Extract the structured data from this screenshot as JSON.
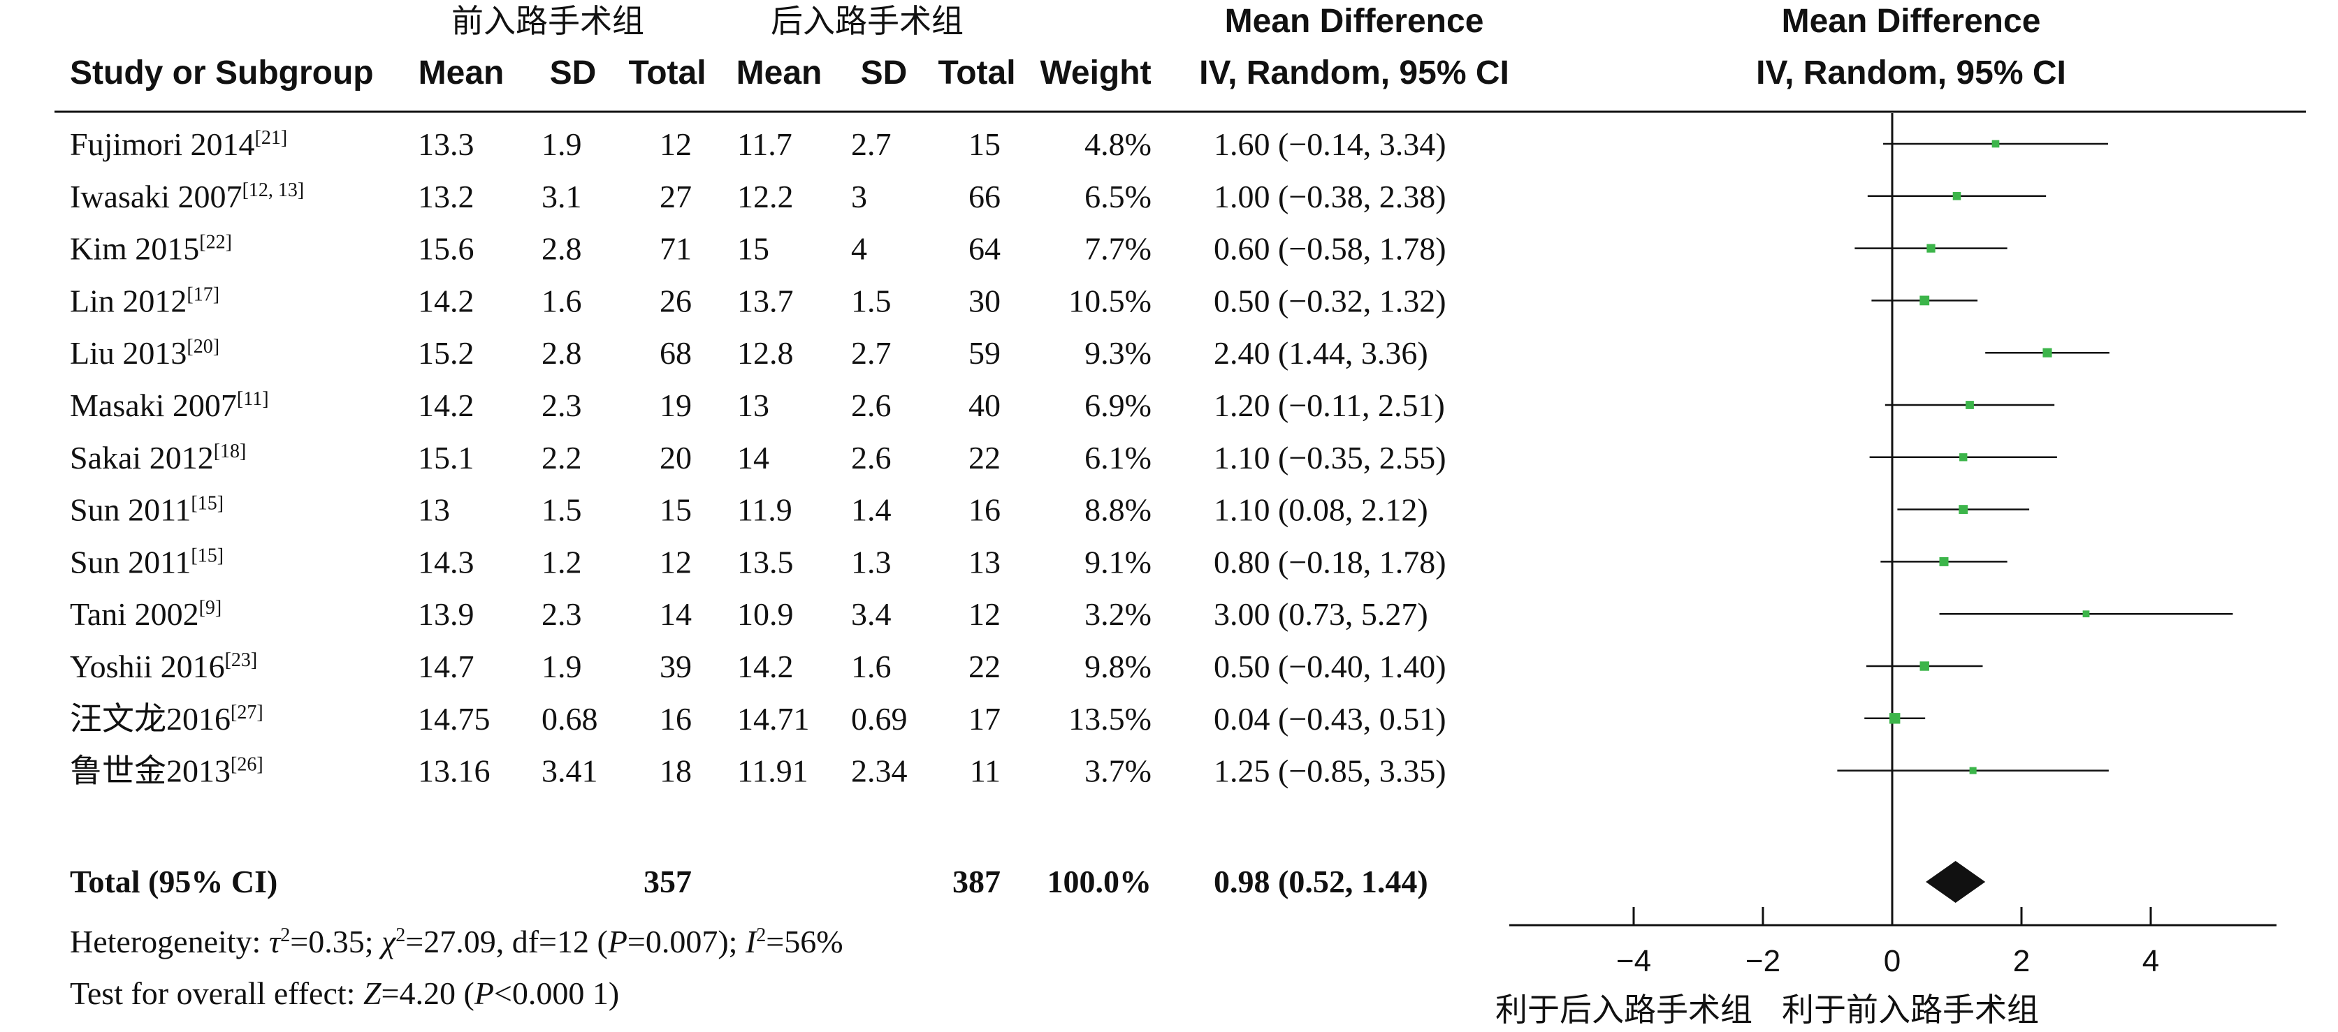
{
  "header": {
    "group_exp": "前入路手术组",
    "group_ctl": "后入路手术组",
    "md_title_line1": "Mean Difference",
    "md_title_line2": "IV, Random, 95% CI",
    "plot_title_line1": "Mean Difference",
    "plot_title_line2": "IV, Random, 95% CI",
    "col_study": "Study or Subgroup",
    "col_mean_exp": "Mean",
    "col_sd_exp": "SD",
    "col_total_exp": "Total",
    "col_mean_ctl": "Mean",
    "col_sd_ctl": "SD",
    "col_total_ctl": "Total",
    "col_weight": "Weight"
  },
  "studies": [
    {
      "name": "Fujimori 2014",
      "ref": "[21]",
      "mean1": "13.3",
      "sd1": "1.9",
      "n1": "12",
      "mean2": "11.7",
      "sd2": "2.7",
      "n2": "15",
      "weight": "4.8%",
      "ci_text": "1.60 (−0.14, 3.34)"
    },
    {
      "name": "Iwasaki 2007",
      "ref": "[12, 13]",
      "mean1": "13.2",
      "sd1": "3.1",
      "n1": "27",
      "mean2": "12.2",
      "sd2": "3",
      "n2": "66",
      "weight": "6.5%",
      "ci_text": "1.00 (−0.38, 2.38)"
    },
    {
      "name": "Kim 2015",
      "ref": "[22]",
      "mean1": "15.6",
      "sd1": "2.8",
      "n1": "71",
      "mean2": "15",
      "sd2": "4",
      "n2": "64",
      "weight": "7.7%",
      "ci_text": "0.60 (−0.58, 1.78)"
    },
    {
      "name": "Lin 2012",
      "ref": "[17]",
      "mean1": "14.2",
      "sd1": "1.6",
      "n1": "26",
      "mean2": "13.7",
      "sd2": "1.5",
      "n2": "30",
      "weight": "10.5%",
      "ci_text": "0.50 (−0.32, 1.32)"
    },
    {
      "name": "Liu 2013",
      "ref": "[20]",
      "mean1": "15.2",
      "sd1": "2.8",
      "n1": "68",
      "mean2": "12.8",
      "sd2": "2.7",
      "n2": "59",
      "weight": "9.3%",
      "ci_text": "2.40 (1.44, 3.36)"
    },
    {
      "name": "Masaki 2007",
      "ref": "[11]",
      "mean1": "14.2",
      "sd1": "2.3",
      "n1": "19",
      "mean2": "13",
      "sd2": "2.6",
      "n2": "40",
      "weight": "6.9%",
      "ci_text": "1.20 (−0.11, 2.51)"
    },
    {
      "name": "Sakai 2012",
      "ref": "[18]",
      "mean1": "15.1",
      "sd1": "2.2",
      "n1": "20",
      "mean2": "14",
      "sd2": "2.6",
      "n2": "22",
      "weight": "6.1%",
      "ci_text": "1.10 (−0.35, 2.55)"
    },
    {
      "name": "Sun 2011",
      "ref": "[15]",
      "mean1": "13",
      "sd1": "1.5",
      "n1": "15",
      "mean2": "11.9",
      "sd2": "1.4",
      "n2": "16",
      "weight": "8.8%",
      "ci_text": "1.10 (0.08, 2.12)"
    },
    {
      "name": "Sun 2011",
      "ref": "[15]",
      "mean1": "14.3",
      "sd1": "1.2",
      "n1": "12",
      "mean2": "13.5",
      "sd2": "1.3",
      "n2": "13",
      "weight": "9.1%",
      "ci_text": "0.80 (−0.18, 1.78)"
    },
    {
      "name": "Tani 2002",
      "ref": "[9]",
      "mean1": "13.9",
      "sd1": "2.3",
      "n1": "14",
      "mean2": "10.9",
      "sd2": "3.4",
      "n2": "12",
      "weight": "3.2%",
      "ci_text": "3.00 (0.73, 5.27)"
    },
    {
      "name": "Yoshii 2016",
      "ref": "[23]",
      "mean1": "14.7",
      "sd1": "1.9",
      "n1": "39",
      "mean2": "14.2",
      "sd2": "1.6",
      "n2": "22",
      "weight": "9.8%",
      "ci_text": "0.50 (−0.40, 1.40)"
    },
    {
      "name": "汪文龙2016",
      "ref": "[27]",
      "mean1": "14.75",
      "sd1": "0.68",
      "n1": "16",
      "mean2": "14.71",
      "sd2": "0.69",
      "n2": "17",
      "weight": "13.5%",
      "ci_text": "0.04 (−0.43, 0.51)"
    },
    {
      "name": "鲁世金2013",
      "ref": "[26]",
      "mean1": "13.16",
      "sd1": "3.41",
      "n1": "18",
      "mean2": "11.91",
      "sd2": "2.34",
      "n2": "11",
      "weight": "3.7%",
      "ci_text": "1.25 (−0.85, 3.35)"
    }
  ],
  "total": {
    "label": "Total (95% CI)",
    "n1": "357",
    "n2": "387",
    "weight": "100.0%",
    "ci_text": "0.98 (0.52, 1.44)"
  },
  "heterogeneity": {
    "prefix": "Heterogeneity: ",
    "tau_sym": "τ",
    "tau_val": "=0.35; ",
    "chi_sym": "χ",
    "chi_val": "=27.09, df=12 (",
    "p_sym": "P",
    "p_val": "=0.007); ",
    "i_sym": "I",
    "i_val": "=56%",
    "sq": "2"
  },
  "overall_effect": {
    "prefix": "Test for overall effect: ",
    "z_sym": "Z",
    "z_val": "=4.20 (",
    "p_sym": "P",
    "p_val": "<0.000 1)"
  },
  "favours_left": "利于后入路手术组",
  "favours_right": "利于前入路手术组",
  "colors": {
    "point": "#3cb54a",
    "diamond": "#111111",
    "line": "#111111"
  },
  "chart_data": {
    "type": "forest",
    "measure": "Mean Difference, IV, Random, 95% CI",
    "studies": [
      "Fujimori 2014",
      "Iwasaki 2007",
      "Kim 2015",
      "Lin 2012",
      "Liu 2013",
      "Masaki 2007",
      "Sakai 2012",
      "Sun 2011",
      "Sun 2011",
      "Tani 2002",
      "Yoshii 2016",
      "汪文龙2016",
      "鲁世金2013"
    ],
    "estimate": [
      1.6,
      1.0,
      0.6,
      0.5,
      2.4,
      1.2,
      1.1,
      1.1,
      0.8,
      3.0,
      0.5,
      0.04,
      1.25
    ],
    "ci_low": [
      -0.14,
      -0.38,
      -0.58,
      -0.32,
      1.44,
      -0.11,
      -0.35,
      0.08,
      -0.18,
      0.73,
      -0.4,
      -0.43,
      -0.85
    ],
    "ci_high": [
      3.34,
      2.38,
      1.78,
      1.32,
      3.36,
      2.51,
      2.55,
      2.12,
      1.78,
      5.27,
      1.4,
      0.51,
      3.35
    ],
    "weights": [
      4.8,
      6.5,
      7.7,
      10.5,
      9.3,
      6.9,
      6.1,
      8.8,
      9.1,
      3.2,
      9.8,
      13.5,
      3.7
    ],
    "pooled": {
      "estimate": 0.98,
      "ci_low": 0.52,
      "ci_high": 1.44
    },
    "xlim": [
      -6,
      6
    ],
    "xticks": [
      -4,
      -2,
      0,
      2,
      4
    ]
  }
}
